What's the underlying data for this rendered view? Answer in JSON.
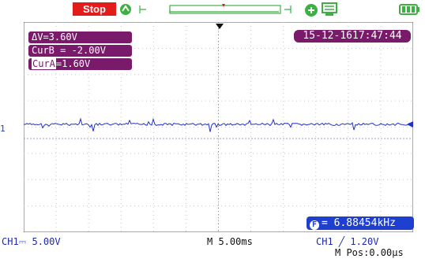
{
  "status": {
    "run_state": "Stop",
    "colors": {
      "stop": "#e31b1b",
      "accent": "#7a1a6b",
      "channel": "#1f3fd0"
    },
    "icons": [
      "trigger-icon",
      "waveform-strip",
      "network-icon",
      "usb-icon",
      "battery-icon"
    ]
  },
  "measurements": {
    "delta_label": "ΔV",
    "delta_value": "=3.60V",
    "cur_b_label": "CurB",
    "cur_b_value": " = -2.00V",
    "cur_a_label": "CurA",
    "cur_a_value": "=1.60V"
  },
  "datetime": "15-12-1617:47:44",
  "frequency": "= 6.88454kHz",
  "channel_marker": "1",
  "bottom": {
    "ch1_scale": "CH1⎓ 5.00V",
    "timebase": "M 5.00ms",
    "trigger": "CH1 ╱ 1.20V",
    "m_pos": "M Pos:0.00μs"
  }
}
